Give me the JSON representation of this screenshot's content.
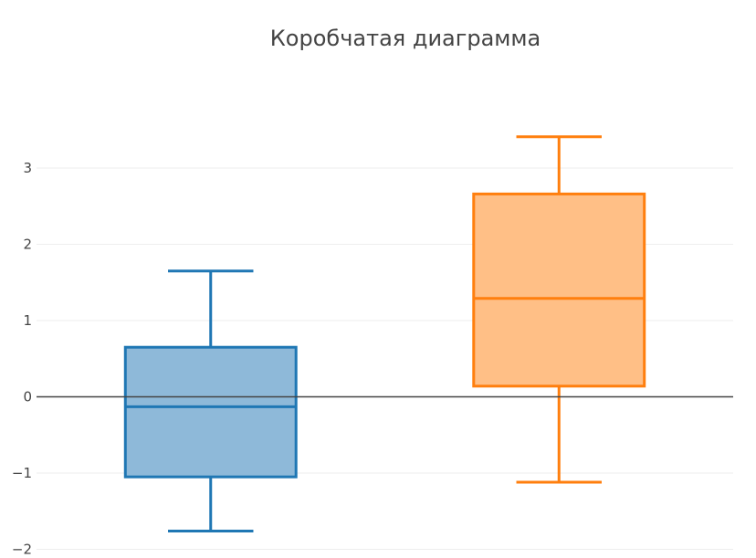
{
  "chart_data": {
    "type": "box",
    "title": "Коробчатая диаграмма",
    "xlabel": "",
    "ylabel": "",
    "ylim": [
      -2,
      3.8
    ],
    "yticks": [
      -2,
      -1,
      0,
      1,
      2,
      3
    ],
    "ytick_labels": [
      "−2",
      "−1",
      "0",
      "1",
      "2",
      "3"
    ],
    "grid": true,
    "legend": "none",
    "series": [
      {
        "color": "#1f77b4",
        "fill": "#8eb9d9",
        "min": -1.76,
        "q1": -1.05,
        "median": -0.13,
        "q3": 0.65,
        "max": 1.65
      },
      {
        "color": "#ff7f0e",
        "fill": "#ffbf86",
        "min": -1.12,
        "q1": 0.14,
        "median": 1.29,
        "q3": 2.66,
        "max": 3.41
      }
    ]
  }
}
